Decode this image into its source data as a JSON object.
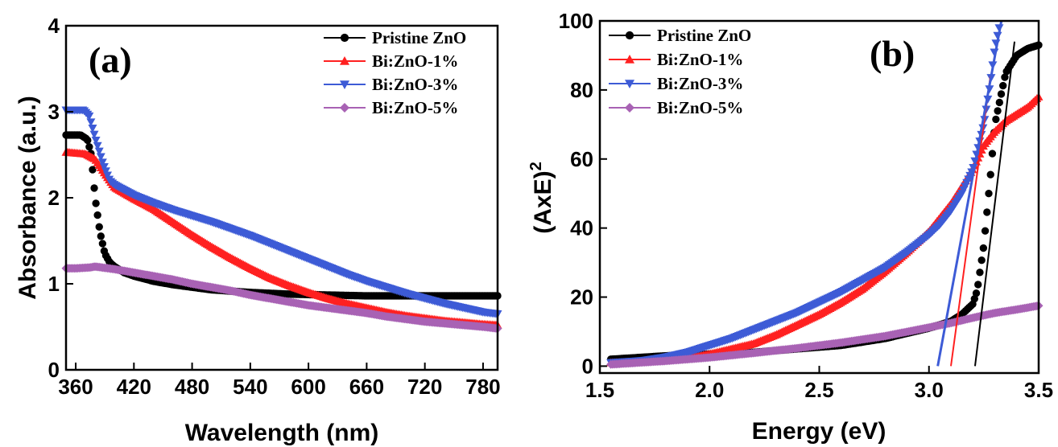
{
  "chart_data": [
    {
      "type": "scatter",
      "panel_label": "(a)",
      "xlabel": "Wavelength (nm)",
      "ylabel": "Absorbance (a.u.)",
      "xlim": [
        350,
        795
      ],
      "ylim": [
        0,
        4
      ],
      "xticks": [
        360,
        420,
        480,
        540,
        600,
        660,
        720,
        780
      ],
      "yticks": [
        0,
        1,
        2,
        3,
        4
      ],
      "legend_position": "top-right",
      "series": [
        {
          "name": "Pristine ZnO",
          "color": "#000000",
          "marker": "circle",
          "x": [
            350,
            365,
            372,
            376,
            380,
            385,
            390,
            395,
            400,
            410,
            420,
            440,
            460,
            480,
            500,
            540,
            580,
            620,
            660,
            700,
            740,
            780,
            795
          ],
          "y": [
            2.73,
            2.73,
            2.68,
            2.5,
            2.0,
            1.6,
            1.35,
            1.25,
            1.2,
            1.13,
            1.09,
            1.03,
            0.99,
            0.96,
            0.93,
            0.9,
            0.88,
            0.87,
            0.86,
            0.86,
            0.86,
            0.86,
            0.86
          ]
        },
        {
          "name": "Bi:ZnO-1%",
          "color": "#ff2020",
          "marker": "triangle-up",
          "x": [
            350,
            360,
            370,
            380,
            390,
            400,
            420,
            440,
            460,
            480,
            500,
            520,
            540,
            560,
            580,
            600,
            620,
            640,
            660,
            680,
            700,
            720,
            740,
            760,
            780,
            795
          ],
          "y": [
            2.53,
            2.52,
            2.51,
            2.45,
            2.28,
            2.12,
            1.99,
            1.87,
            1.72,
            1.57,
            1.43,
            1.3,
            1.18,
            1.07,
            0.98,
            0.9,
            0.83,
            0.77,
            0.72,
            0.67,
            0.63,
            0.6,
            0.57,
            0.55,
            0.53,
            0.52
          ]
        },
        {
          "name": "Bi:ZnO-3%",
          "color": "#3d5bd6",
          "marker": "triangle-down",
          "x": [
            350,
            368,
            374,
            380,
            388,
            395,
            400,
            420,
            440,
            460,
            480,
            500,
            520,
            540,
            560,
            580,
            600,
            620,
            640,
            660,
            680,
            700,
            720,
            740,
            760,
            780,
            795
          ],
          "y": [
            3.02,
            3.02,
            2.95,
            2.7,
            2.4,
            2.2,
            2.15,
            2.03,
            1.94,
            1.86,
            1.79,
            1.72,
            1.64,
            1.56,
            1.47,
            1.38,
            1.29,
            1.2,
            1.11,
            1.03,
            0.96,
            0.89,
            0.83,
            0.77,
            0.72,
            0.67,
            0.65
          ]
        },
        {
          "name": "Bi:ZnO-5%",
          "color": "#a862b4",
          "marker": "diamond",
          "x": [
            350,
            360,
            375,
            380,
            400,
            420,
            440,
            460,
            480,
            500,
            520,
            540,
            560,
            580,
            600,
            620,
            640,
            660,
            680,
            700,
            720,
            740,
            760,
            780,
            795
          ],
          "y": [
            1.18,
            1.18,
            1.19,
            1.2,
            1.17,
            1.13,
            1.09,
            1.05,
            1.0,
            0.96,
            0.92,
            0.87,
            0.83,
            0.79,
            0.75,
            0.72,
            0.69,
            0.66,
            0.62,
            0.59,
            0.56,
            0.54,
            0.52,
            0.5,
            0.48
          ]
        }
      ]
    },
    {
      "type": "scatter",
      "panel_label": "(b)",
      "xlabel": "Energy (eV)",
      "ylabel_base": "(AxE)",
      "ylabel_sup": "2",
      "xlim": [
        1.5,
        3.5
      ],
      "ylim": [
        -2,
        100
      ],
      "xticks": [
        1.5,
        2.0,
        2.5,
        3.0,
        3.5
      ],
      "xtick_labels": [
        "1.5",
        "2.0",
        "2.5",
        "3.0",
        "3.5"
      ],
      "yticks": [
        0,
        20,
        40,
        60,
        80,
        100
      ],
      "legend_position": "top-left",
      "series": [
        {
          "name": "Pristine ZnO",
          "color": "#000000",
          "marker": "circle",
          "x": [
            1.55,
            1.8,
            2.0,
            2.2,
            2.4,
            2.6,
            2.8,
            2.9,
            3.0,
            3.1,
            3.15,
            3.2,
            3.22,
            3.25,
            3.28,
            3.3,
            3.35,
            3.4,
            3.45,
            3.5
          ],
          "y": [
            2,
            3,
            3.5,
            4,
            5,
            6,
            8,
            9.5,
            11,
            13,
            15,
            18,
            22,
            35,
            55,
            70,
            85,
            90,
            92,
            93
          ]
        },
        {
          "name": "Bi:ZnO-1%",
          "color": "#ff2020",
          "marker": "triangle-up",
          "x": [
            1.55,
            1.7,
            1.8,
            1.9,
            2.0,
            2.1,
            2.2,
            2.3,
            2.4,
            2.5,
            2.6,
            2.7,
            2.8,
            2.9,
            3.0,
            3.05,
            3.1,
            3.15,
            3.2,
            3.25,
            3.3,
            3.35,
            3.4,
            3.45,
            3.5
          ],
          "y": [
            1,
            1.3,
            1.8,
            2.5,
            3.5,
            5,
            6.5,
            9,
            12,
            15,
            18.5,
            22.5,
            27.5,
            33,
            39,
            43,
            47,
            52,
            57,
            64,
            68,
            71,
            73,
            75,
            78
          ]
        },
        {
          "name": "Bi:ZnO-3%",
          "color": "#3d5bd6",
          "marker": "triangle-down",
          "x": [
            1.55,
            1.7,
            1.8,
            1.9,
            2.0,
            2.1,
            2.2,
            2.3,
            2.4,
            2.5,
            2.6,
            2.7,
            2.8,
            2.9,
            3.0,
            3.05,
            3.1,
            3.15,
            3.2,
            3.25,
            3.28,
            3.3,
            3.32
          ],
          "y": [
            1,
            1.6,
            2.6,
            4,
            6,
            8,
            10.5,
            13,
            15.5,
            18.5,
            21.5,
            25,
            28.5,
            33,
            38,
            41,
            45,
            50,
            57,
            70,
            82,
            92,
            98
          ]
        },
        {
          "name": "Bi:ZnO-5%",
          "color": "#a862b4",
          "marker": "diamond",
          "x": [
            1.55,
            1.8,
            2.0,
            2.2,
            2.4,
            2.6,
            2.8,
            3.0,
            3.1,
            3.2,
            3.3,
            3.4,
            3.5
          ],
          "y": [
            0.5,
            1.5,
            2.5,
            3.8,
            5.2,
            6.8,
            8.7,
            11.2,
            12.5,
            14,
            15.4,
            16.4,
            17.5
          ]
        }
      ],
      "tangent_lines": [
        {
          "color": "#000000",
          "x": [
            3.21,
            3.39
          ],
          "y": [
            0,
            94
          ]
        },
        {
          "color": "#ff2020",
          "x": [
            3.1,
            3.28
          ],
          "y": [
            0,
            84
          ]
        },
        {
          "color": "#3d5bd6",
          "x": [
            3.04,
            3.33
          ],
          "y": [
            0,
            100
          ]
        }
      ]
    }
  ]
}
